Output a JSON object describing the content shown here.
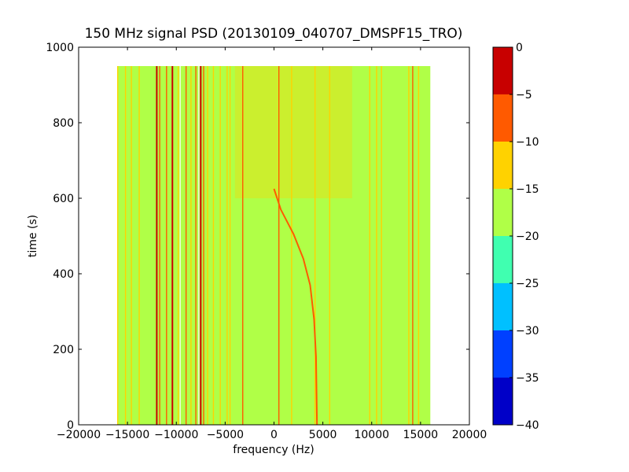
{
  "chart_data": {
    "type": "heatmap",
    "title": "150 MHz signal PSD (20130109_040707_DMSPF15_TRO)",
    "xlabel": "frequency (Hz)",
    "ylabel": "time (s)",
    "xlim": [
      -20000,
      20000
    ],
    "ylim": [
      0,
      1000
    ],
    "x_ticks": [
      -20000,
      -15000,
      -10000,
      -5000,
      0,
      5000,
      10000,
      15000,
      20000
    ],
    "y_ticks": [
      0,
      200,
      400,
      600,
      800,
      1000
    ],
    "x_tick_labels": [
      "−20000",
      "−15000",
      "−10000",
      "−5000",
      "0",
      "5000",
      "10000",
      "15000",
      "20000"
    ],
    "y_tick_labels": [
      "0",
      "200",
      "400",
      "600",
      "800",
      "1000"
    ],
    "data_extent": {
      "x": [
        -16000,
        16000
      ],
      "y": [
        0,
        950
      ]
    },
    "background_level_db": -17,
    "colorbar": {
      "levels": [
        -40,
        -35,
        -30,
        -25,
        -20,
        -15,
        -10,
        -5,
        0
      ],
      "tick_labels": [
        "−40",
        "−35",
        "−30",
        "−25",
        "−20",
        "−15",
        "−10",
        "−5",
        "0"
      ],
      "colors": [
        "#0000c8",
        "#0040ff",
        "#00c0ff",
        "#40ffb0",
        "#b0ff47",
        "#ffd200",
        "#ff5a00",
        "#c80000"
      ]
    },
    "constant_lines": [
      {
        "f": -16000,
        "level": -12
      },
      {
        "f": -15200,
        "level": -12
      },
      {
        "f": -14600,
        "level": -12
      },
      {
        "f": -13800,
        "level": -12
      },
      {
        "f": -12000,
        "level": -3
      },
      {
        "f": -11700,
        "level": -8
      },
      {
        "f": -11000,
        "level": -8
      },
      {
        "f": -10400,
        "level": -3
      },
      {
        "f": -9800,
        "level": -12
      },
      {
        "f": -9000,
        "level": -8
      },
      {
        "f": -8500,
        "level": -12
      },
      {
        "f": -8000,
        "level": -8
      },
      {
        "f": -7500,
        "level": -3
      },
      {
        "f": -7200,
        "level": -8
      },
      {
        "f": -6800,
        "level": -12
      },
      {
        "f": -6200,
        "level": -12
      },
      {
        "f": -5500,
        "level": -12
      },
      {
        "f": -4800,
        "level": -12
      },
      {
        "f": -4500,
        "level": -12
      },
      {
        "f": -3200,
        "level": -8
      },
      {
        "f": 500,
        "level": -8
      },
      {
        "f": 1800,
        "level": -12
      },
      {
        "f": 4200,
        "level": -12
      },
      {
        "f": 5700,
        "level": -12
      },
      {
        "f": 9800,
        "level": -12
      },
      {
        "f": 10500,
        "level": -12
      },
      {
        "f": 11000,
        "level": -12
      },
      {
        "f": 13800,
        "level": -12
      },
      {
        "f": 14200,
        "level": -8
      },
      {
        "f": 14800,
        "level": -12
      }
    ],
    "curved_trace": {
      "level": -8,
      "points": [
        [
          0,
          625
        ],
        [
          700,
          570
        ],
        [
          2000,
          505
        ],
        [
          3000,
          440
        ],
        [
          3700,
          370
        ],
        [
          4100,
          280
        ],
        [
          4300,
          180
        ],
        [
          4400,
          0
        ]
      ]
    },
    "noise_band": {
      "x": [
        -4000,
        8000
      ],
      "y": [
        600,
        950
      ],
      "level": -12
    }
  }
}
